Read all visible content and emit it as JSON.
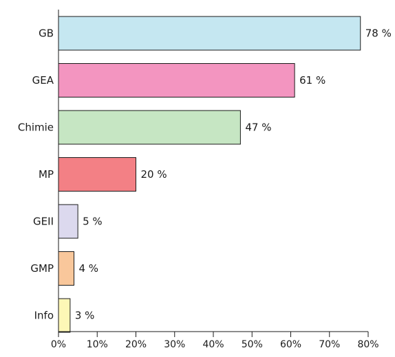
{
  "chart_data": {
    "type": "bar",
    "orientation": "horizontal",
    "title": "",
    "xlabel": "",
    "ylabel": "",
    "categories": [
      "GB",
      "GEA",
      "Chimie",
      "MP",
      "GEII",
      "GMP",
      "Info"
    ],
    "values": [
      78,
      61,
      47,
      20,
      5,
      4,
      3
    ],
    "value_labels": [
      "78 %",
      "61 %",
      "47 %",
      "20 %",
      "5 %",
      "4 %",
      "3 %"
    ],
    "colors": [
      "#c5e7f1",
      "#f395c0",
      "#c6e6c3",
      "#f38085",
      "#dcd9ee",
      "#f9c79b",
      "#fdf7b6"
    ],
    "xlim": [
      0,
      80
    ],
    "xticks": [
      0,
      10,
      20,
      30,
      40,
      50,
      60,
      70,
      80
    ],
    "xtick_labels": [
      "0%",
      "10%",
      "20%",
      "30%",
      "40%",
      "50%",
      "60%",
      "70%",
      "80%"
    ],
    "grid": false,
    "legend": false
  }
}
